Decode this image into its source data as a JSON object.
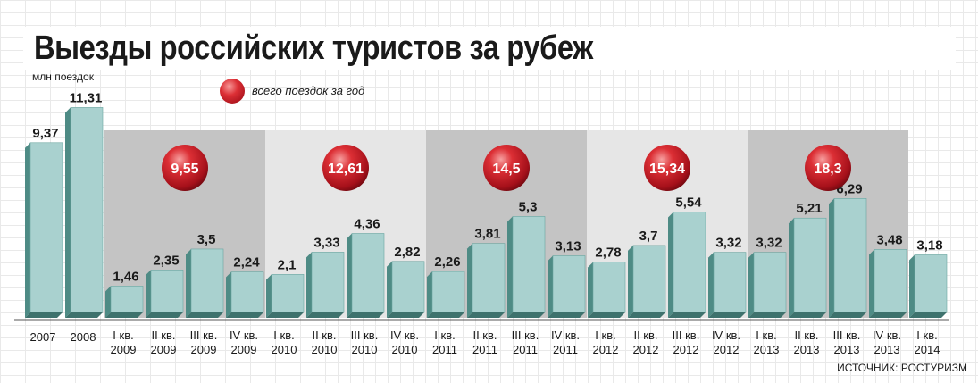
{
  "chart_data": {
    "type": "bar",
    "title": "Выезды российских туристов за рубеж",
    "ylabel": "млн поездок",
    "legend": "всего поездок за год",
    "source": "ИСТОЧНИК: РОСТУРИЗМ",
    "ylim": [
      0,
      11.31
    ],
    "bars": [
      {
        "label_top": "2007",
        "label_bottom": "",
        "value": 9.37,
        "display": "9,37"
      },
      {
        "label_top": "2008",
        "label_bottom": "",
        "value": 11.31,
        "display": "11,31"
      },
      {
        "label_top": "I кв.",
        "label_bottom": "2009",
        "value": 1.46,
        "display": "1,46"
      },
      {
        "label_top": "II кв.",
        "label_bottom": "2009",
        "value": 2.35,
        "display": "2,35"
      },
      {
        "label_top": "III кв.",
        "label_bottom": "2009",
        "value": 3.5,
        "display": "3,5"
      },
      {
        "label_top": "IV кв.",
        "label_bottom": "2009",
        "value": 2.24,
        "display": "2,24"
      },
      {
        "label_top": "I кв.",
        "label_bottom": "2010",
        "value": 2.1,
        "display": "2,1"
      },
      {
        "label_top": "II кв.",
        "label_bottom": "2010",
        "value": 3.33,
        "display": "3,33"
      },
      {
        "label_top": "III кв.",
        "label_bottom": "2010",
        "value": 4.36,
        "display": "4,36"
      },
      {
        "label_top": "IV кв.",
        "label_bottom": "2010",
        "value": 2.82,
        "display": "2,82"
      },
      {
        "label_top": "I кв.",
        "label_bottom": "2011",
        "value": 2.26,
        "display": "2,26"
      },
      {
        "label_top": "II кв.",
        "label_bottom": "2011",
        "value": 3.81,
        "display": "3,81"
      },
      {
        "label_top": "III кв.",
        "label_bottom": "2011",
        "value": 5.3,
        "display": "5,3"
      },
      {
        "label_top": "IV кв.",
        "label_bottom": "2011",
        "value": 3.13,
        "display": "3,13"
      },
      {
        "label_top": "I кв.",
        "label_bottom": "2012",
        "value": 2.78,
        "display": "2,78"
      },
      {
        "label_top": "II кв.",
        "label_bottom": "2012",
        "value": 3.7,
        "display": "3,7"
      },
      {
        "label_top": "III кв.",
        "label_bottom": "2012",
        "value": 5.54,
        "display": "5,54"
      },
      {
        "label_top": "IV кв.",
        "label_bottom": "2012",
        "value": 3.32,
        "display": "3,32"
      },
      {
        "label_top": "I кв.",
        "label_bottom": "2013",
        "value": 3.32,
        "display": "3,32"
      },
      {
        "label_top": "II кв.",
        "label_bottom": "2013",
        "value": 5.21,
        "display": "5,21"
      },
      {
        "label_top": "III кв.",
        "label_bottom": "2013",
        "value": 6.29,
        "display": "6,29"
      },
      {
        "label_top": "IV кв.",
        "label_bottom": "2013",
        "value": 3.48,
        "display": "3,48"
      },
      {
        "label_top": "I кв.",
        "label_bottom": "2014",
        "value": 3.18,
        "display": "3,18"
      }
    ],
    "yearly_totals": [
      {
        "year": "2009",
        "value": 9.55,
        "display": "9,55"
      },
      {
        "year": "2010",
        "value": 12.61,
        "display": "12,61"
      },
      {
        "year": "2011",
        "value": 14.5,
        "display": "14,5"
      },
      {
        "year": "2012",
        "value": 15.34,
        "display": "15,34"
      },
      {
        "year": "2013",
        "value": 18.3,
        "display": "18,3"
      }
    ]
  },
  "colors": {
    "bar_front": "#a9d1cf",
    "bar_side": "#4e8b85",
    "bar_top": "#cfe6e4",
    "panel_dark": "#c4c4c4",
    "panel_light": "#e6e6e6",
    "ball": "#c8141f"
  }
}
